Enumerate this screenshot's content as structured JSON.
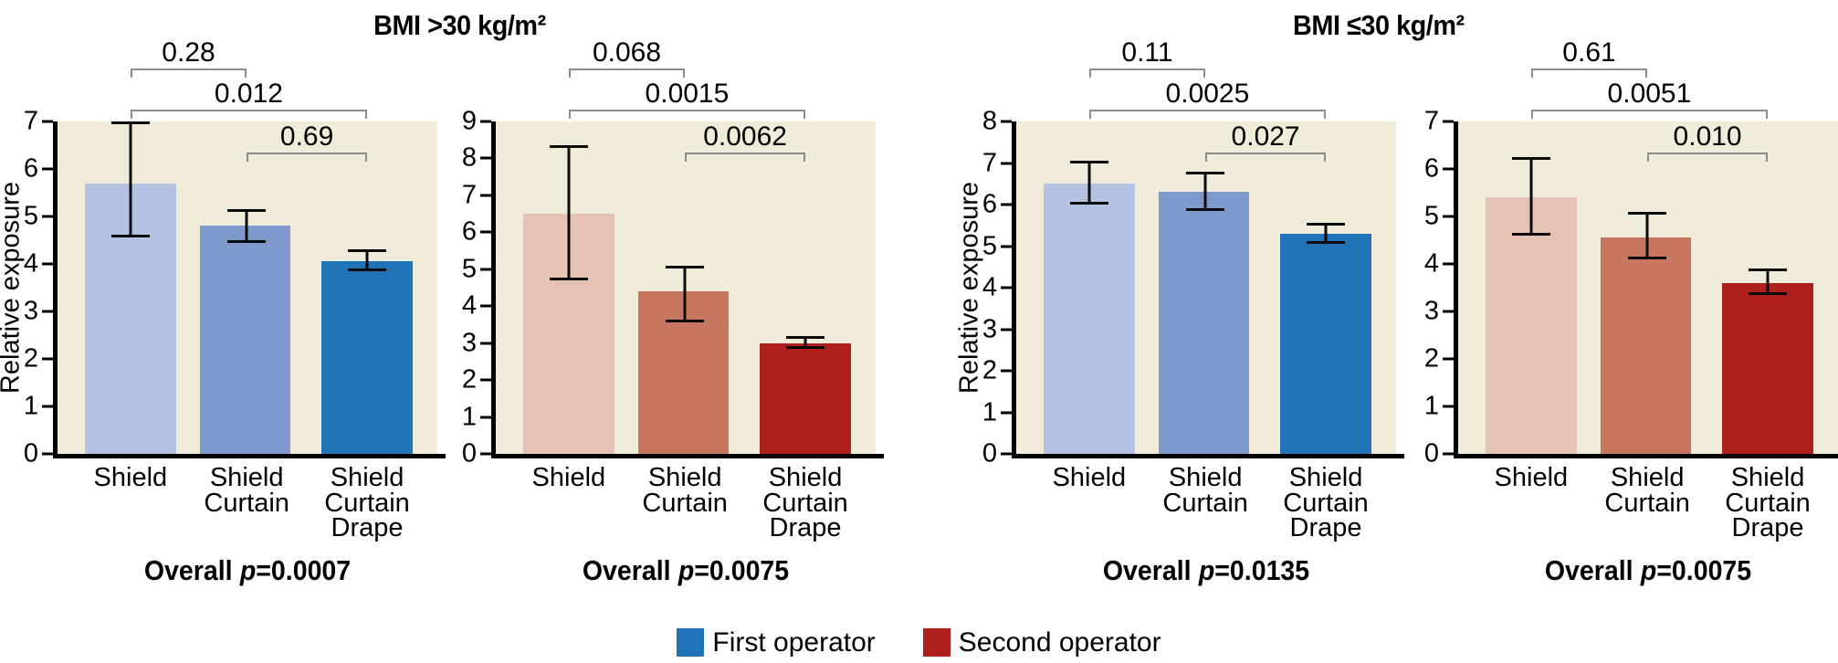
{
  "figure": {
    "group_titles": [
      "BMI >30 kg/m²",
      "BMI ≤30 kg/m²"
    ],
    "overall_label": "Overall",
    "p_symbol": "p",
    "equals_sign": "=",
    "legend": {
      "items": [
        {
          "label": "First operator",
          "color": "#2173b8"
        },
        {
          "label": "Second operator",
          "color": "#ad201e"
        }
      ]
    },
    "colors": {
      "plot_background": "#f0ecd9",
      "axis": "#000000",
      "bracket": "#8c8c8c"
    }
  },
  "chart_data": [
    {
      "type": "bar",
      "group": "BMI >30 kg/m²",
      "operator": "First operator",
      "ylabel": "Relative exposure",
      "ylim": [
        0,
        7
      ],
      "yticks": [
        0,
        1,
        2,
        3,
        4,
        5,
        6,
        7
      ],
      "categories": [
        "Shield",
        "Shield Curtain",
        "Shield Curtain Drape"
      ],
      "category_lines": [
        [
          "Shield"
        ],
        [
          "Shield",
          "Curtain"
        ],
        [
          "Shield",
          "Curtain",
          "Drape"
        ]
      ],
      "values": [
        5.7,
        4.8,
        4.05
      ],
      "errors": [
        [
          4.55,
          7.0
        ],
        [
          4.45,
          5.15
        ],
        [
          3.85,
          4.3
        ]
      ],
      "bar_colors": [
        "#b5c3e3",
        "#7e99cb",
        "#2173b8"
      ],
      "pairwise_p": [
        {
          "bars": [
            1,
            2
          ],
          "p": "0.28"
        },
        {
          "bars": [
            1,
            3
          ],
          "p": "0.012"
        },
        {
          "bars": [
            2,
            3
          ],
          "p": "0.69"
        }
      ],
      "overall_p": "0.0007"
    },
    {
      "type": "bar",
      "group": "BMI >30 kg/m²",
      "operator": "Second operator",
      "ylabel": null,
      "ylim": [
        0,
        9
      ],
      "yticks": [
        0,
        1,
        2,
        3,
        4,
        5,
        6,
        7,
        8,
        9
      ],
      "categories": [
        "Shield",
        "Shield Curtain",
        "Shield Curtain Drape"
      ],
      "category_lines": [
        [
          "Shield"
        ],
        [
          "Shield",
          "Curtain"
        ],
        [
          "Shield",
          "Curtain",
          "Drape"
        ]
      ],
      "values": [
        6.5,
        4.4,
        3.0
      ],
      "errors": [
        [
          4.7,
          8.35
        ],
        [
          3.55,
          5.1
        ],
        [
          2.85,
          3.2
        ]
      ],
      "bar_colors": [
        "#e7c3b5",
        "#c7775f",
        "#ad201e"
      ],
      "pairwise_p": [
        {
          "bars": [
            1,
            2
          ],
          "p": "0.068"
        },
        {
          "bars": [
            1,
            3
          ],
          "p": "0.0015"
        },
        {
          "bars": [
            2,
            3
          ],
          "p": "0.0062"
        }
      ],
      "overall_p": "0.0075"
    },
    {
      "type": "bar",
      "group": "BMI ≤30 kg/m²",
      "operator": "First operator",
      "ylabel": "Relative exposure",
      "ylim": [
        0,
        8
      ],
      "yticks": [
        0,
        1,
        2,
        3,
        4,
        5,
        6,
        7,
        8
      ],
      "categories": [
        "Shield",
        "Shield Curtain",
        "Shield Curtain Drape"
      ],
      "category_lines": [
        [
          "Shield"
        ],
        [
          "Shield",
          "Curtain"
        ],
        [
          "Shield",
          "Curtain",
          "Drape"
        ]
      ],
      "values": [
        6.5,
        6.3,
        5.3
      ],
      "errors": [
        [
          6.0,
          7.05
        ],
        [
          5.85,
          6.8
        ],
        [
          5.05,
          5.55
        ]
      ],
      "bar_colors": [
        "#b5c3e3",
        "#7e99cb",
        "#2173b8"
      ],
      "pairwise_p": [
        {
          "bars": [
            1,
            2
          ],
          "p": "0.11"
        },
        {
          "bars": [
            1,
            3
          ],
          "p": "0.0025"
        },
        {
          "bars": [
            2,
            3
          ],
          "p": "0.027"
        }
      ],
      "overall_p": "0.0135"
    },
    {
      "type": "bar",
      "group": "BMI ≤30 kg/m²",
      "operator": "Second operator",
      "ylabel": null,
      "ylim": [
        0,
        7
      ],
      "yticks": [
        0,
        1,
        2,
        3,
        4,
        5,
        6,
        7
      ],
      "categories": [
        "Shield",
        "Shield Curtain",
        "Shield Curtain Drape"
      ],
      "category_lines": [
        [
          "Shield"
        ],
        [
          "Shield",
          "Curtain"
        ],
        [
          "Shield",
          "Curtain",
          "Drape"
        ]
      ],
      "values": [
        5.4,
        4.55,
        3.6
      ],
      "errors": [
        [
          4.6,
          6.25
        ],
        [
          4.1,
          5.1
        ],
        [
          3.35,
          3.9
        ]
      ],
      "bar_colors": [
        "#e7c3b5",
        "#c7775f",
        "#ad201e"
      ],
      "pairwise_p": [
        {
          "bars": [
            1,
            2
          ],
          "p": "0.61"
        },
        {
          "bars": [
            1,
            3
          ],
          "p": "0.0051"
        },
        {
          "bars": [
            2,
            3
          ],
          "p": "0.010"
        }
      ],
      "overall_p": "0.0075"
    }
  ]
}
